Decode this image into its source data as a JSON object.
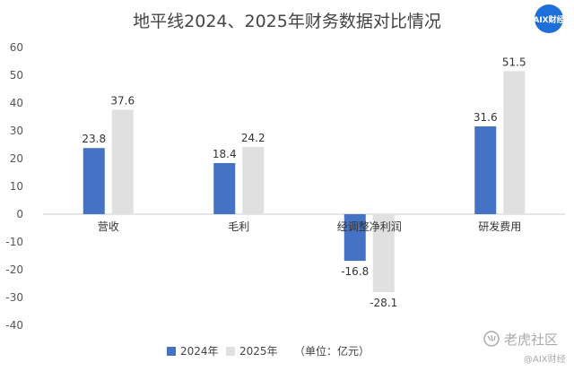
{
  "chart_data": {
    "type": "bar",
    "title": "地平线2024、2025年财务数据对比情况",
    "categories": [
      "营收",
      "毛利",
      "经调整净利润",
      "研发费用"
    ],
    "series": [
      {
        "name": "2024年",
        "color": "#4472c4",
        "values": [
          23.8,
          18.4,
          -16.8,
          31.6
        ]
      },
      {
        "name": "2025年",
        "color": "#e0e0e0",
        "values": [
          37.6,
          24.2,
          -28.1,
          51.5
        ]
      }
    ],
    "ylim": [
      -40,
      60
    ],
    "yticks": [
      60,
      50,
      40,
      30,
      20,
      10,
      0,
      -10,
      -20,
      -30,
      -40
    ],
    "grid": false,
    "legend_position": "bottom",
    "unit_note": "（单位：亿元）"
  },
  "badge": {
    "text": "AIX财经",
    "color": "#1e6fd9"
  },
  "watermark": {
    "main": "老虎社区",
    "sub": "@AIX财经",
    "icon": "tiger-claw-icon"
  }
}
